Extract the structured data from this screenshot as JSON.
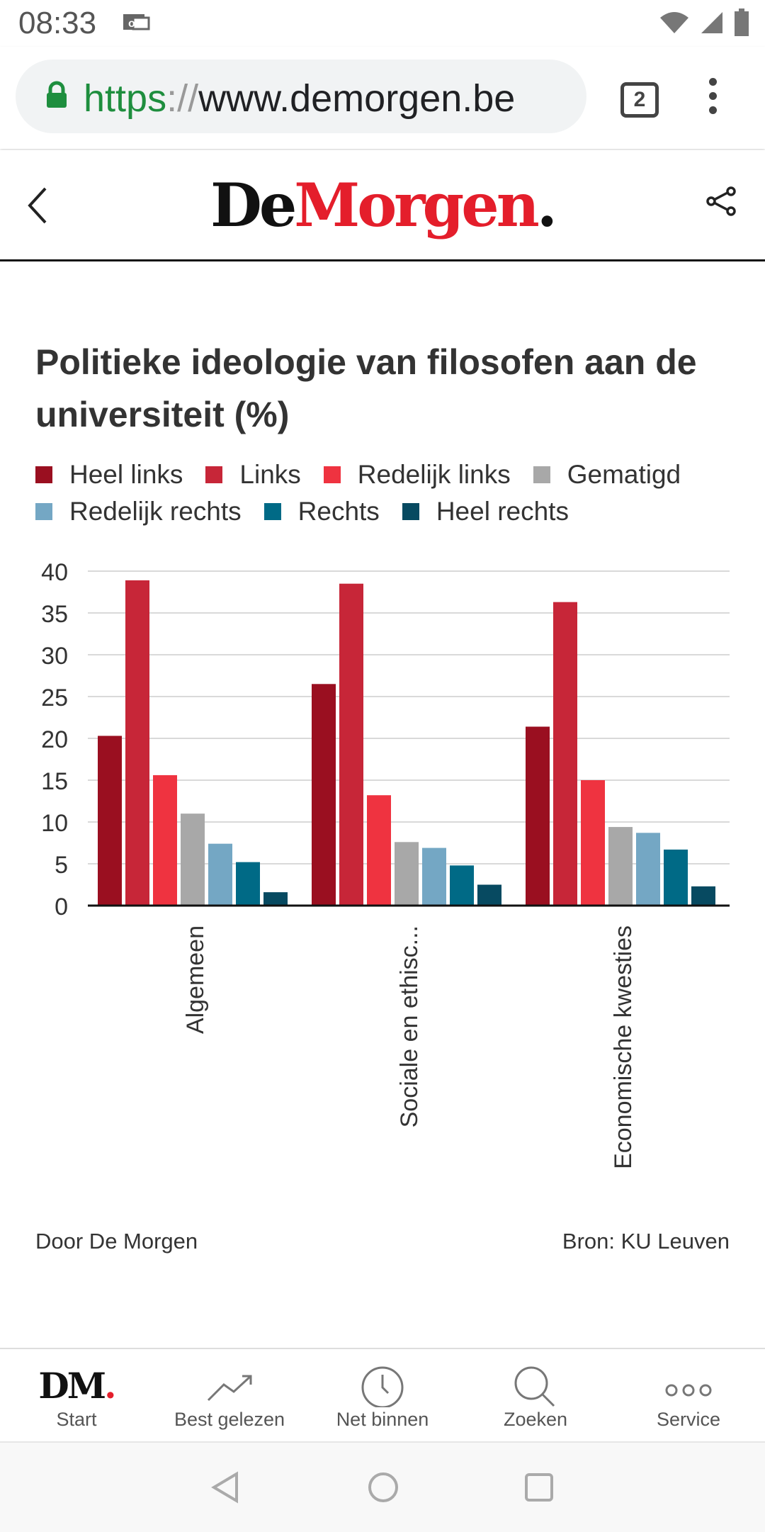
{
  "status_bar": {
    "time": "08:33"
  },
  "browser": {
    "url_scheme": "https",
    "url_separator": "://",
    "url_host": "www.demorgen.be",
    "tab_count": "2"
  },
  "site_header": {
    "logo_de": "De",
    "logo_morgen": "Morgen",
    "logo_dot": "."
  },
  "colors": {
    "heel_links": "#9a0f20",
    "links": "#c72638",
    "redelijk_links": "#ef3340",
    "gematigd": "#a8a8a8",
    "redelijk_rechts": "#74a7c4",
    "rechts": "#006a86",
    "heel_rechts": "#074a61"
  },
  "chart_data": {
    "type": "bar",
    "title": "Politieke ideologie van filosofen aan de universiteit (%)",
    "categories": [
      "Algemeen",
      "Sociale en ethisc...",
      "Economische kwesties"
    ],
    "series": [
      {
        "name": "Heel links",
        "color": "#9a0f20",
        "values": [
          20.3,
          26.5,
          21.4
        ]
      },
      {
        "name": "Links",
        "color": "#c72638",
        "values": [
          38.9,
          38.5,
          36.3
        ]
      },
      {
        "name": "Redelijk links",
        "color": "#ef3340",
        "values": [
          15.6,
          13.2,
          15.0
        ]
      },
      {
        "name": "Gematigd",
        "color": "#a8a8a8",
        "values": [
          11.0,
          7.6,
          9.4
        ]
      },
      {
        "name": "Redelijk rechts",
        "color": "#74a7c4",
        "values": [
          7.4,
          6.9,
          8.7
        ]
      },
      {
        "name": "Rechts",
        "color": "#006a86",
        "values": [
          5.2,
          4.8,
          6.7
        ]
      },
      {
        "name": "Heel rechts",
        "color": "#074a61",
        "values": [
          1.6,
          2.5,
          2.3
        ]
      }
    ],
    "ylim": [
      0,
      40
    ],
    "yticks": [
      "0",
      "5",
      "10",
      "15",
      "20",
      "25",
      "30",
      "35",
      "40"
    ],
    "grid": true,
    "legend_position": "top"
  },
  "credits": {
    "author": "Door De Morgen",
    "source": "Bron: KU Leuven"
  },
  "app_nav": {
    "start": "Start",
    "best": "Best gelezen",
    "net": "Net binnen",
    "search": "Zoeken",
    "service": "Service",
    "dm_logo_letters": "DM",
    "dm_logo_dot": "."
  }
}
